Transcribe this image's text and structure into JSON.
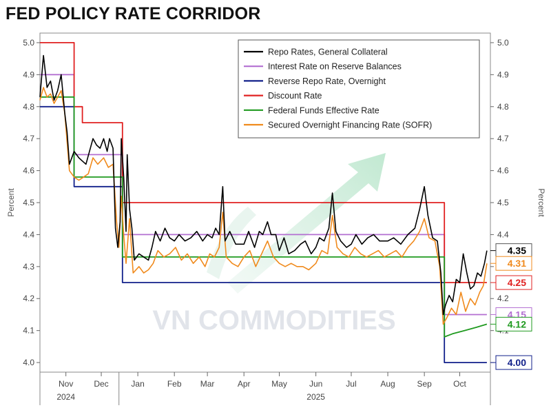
{
  "title": "FED POLICY RATE CORRIDOR",
  "watermark": "VN COMMODITIES",
  "chart_data": {
    "type": "line",
    "title": "FED POLICY RATE CORRIDOR",
    "ylabel_left": "Percent",
    "ylabel_right": "Percent",
    "ylim": [
      3.97,
      5.03
    ],
    "yticks": [
      "5.0",
      "4.9",
      "4.8",
      "4.7",
      "4.6",
      "4.5",
      "4.4",
      "4.3",
      "4.2",
      "4.1",
      "4.0"
    ],
    "ytick_values": [
      5.0,
      4.9,
      4.8,
      4.7,
      4.6,
      4.5,
      4.4,
      4.3,
      4.2,
      4.1,
      4.0
    ],
    "xlim": [
      "2024-10-10",
      "2025-10-27"
    ],
    "xticks": [
      {
        "date": "2024-11-01",
        "label": "Nov"
      },
      {
        "date": "2024-12-01",
        "label": "Dec"
      },
      {
        "date": "2025-01-01",
        "label": "Jan"
      },
      {
        "date": "2025-02-01",
        "label": "Feb"
      },
      {
        "date": "2025-03-01",
        "label": "Mar"
      },
      {
        "date": "2025-04-01",
        "label": "Apr"
      },
      {
        "date": "2025-05-01",
        "label": "May"
      },
      {
        "date": "2025-06-01",
        "label": "Jun"
      },
      {
        "date": "2025-07-01",
        "label": "Jul"
      },
      {
        "date": "2025-08-01",
        "label": "Aug"
      },
      {
        "date": "2025-09-01",
        "label": "Sep"
      },
      {
        "date": "2025-10-01",
        "label": "Oct"
      }
    ],
    "year_labels": [
      {
        "date": "2024-11-01",
        "label": "2024"
      },
      {
        "date": "2025-06-01",
        "label": "2025"
      }
    ],
    "year_divider": "2024-12-16",
    "legend_position": "top-right",
    "grid": false,
    "series": [
      {
        "name": "Repo Rates, General Collateral",
        "color": "#000000",
        "style": "noisy",
        "points": [
          [
            "2024-10-10",
            4.83
          ],
          [
            "2024-10-13",
            4.96
          ],
          [
            "2024-10-16",
            4.86
          ],
          [
            "2024-10-19",
            4.88
          ],
          [
            "2024-10-22",
            4.82
          ],
          [
            "2024-10-25",
            4.85
          ],
          [
            "2024-10-28",
            4.9
          ],
          [
            "2024-10-31",
            4.78
          ],
          [
            "2024-11-02",
            4.72
          ],
          [
            "2024-11-04",
            4.62
          ],
          [
            "2024-11-08",
            4.66
          ],
          [
            "2024-11-12",
            4.64
          ],
          [
            "2024-11-15",
            4.63
          ],
          [
            "2024-11-18",
            4.62
          ],
          [
            "2024-11-21",
            4.66
          ],
          [
            "2024-11-24",
            4.7
          ],
          [
            "2024-11-27",
            4.68
          ],
          [
            "2024-11-30",
            4.67
          ],
          [
            "2024-12-03",
            4.7
          ],
          [
            "2024-12-06",
            4.66
          ],
          [
            "2024-12-08",
            4.7
          ],
          [
            "2024-12-11",
            4.67
          ],
          [
            "2024-12-13",
            4.42
          ],
          [
            "2024-12-15",
            4.36
          ],
          [
            "2024-12-17",
            4.44
          ],
          [
            "2024-12-18",
            4.7
          ],
          [
            "2024-12-20",
            4.58
          ],
          [
            "2024-12-22",
            4.41
          ],
          [
            "2024-12-23",
            4.65
          ],
          [
            "2024-12-25",
            4.48
          ],
          [
            "2024-12-27",
            4.42
          ],
          [
            "2024-12-29",
            4.32
          ],
          [
            "2025-01-02",
            4.34
          ],
          [
            "2025-01-06",
            4.33
          ],
          [
            "2025-01-10",
            4.32
          ],
          [
            "2025-01-13",
            4.36
          ],
          [
            "2025-01-16",
            4.41
          ],
          [
            "2025-01-20",
            4.38
          ],
          [
            "2025-01-24",
            4.42
          ],
          [
            "2025-01-28",
            4.39
          ],
          [
            "2025-02-01",
            4.38
          ],
          [
            "2025-02-05",
            4.4
          ],
          [
            "2025-02-10",
            4.38
          ],
          [
            "2025-02-15",
            4.39
          ],
          [
            "2025-02-20",
            4.41
          ],
          [
            "2025-02-25",
            4.38
          ],
          [
            "2025-03-01",
            4.4
          ],
          [
            "2025-03-05",
            4.39
          ],
          [
            "2025-03-08",
            4.42
          ],
          [
            "2025-03-11",
            4.4
          ],
          [
            "2025-03-14",
            4.55
          ],
          [
            "2025-03-16",
            4.38
          ],
          [
            "2025-03-20",
            4.41
          ],
          [
            "2025-03-25",
            4.37
          ],
          [
            "2025-04-01",
            4.37
          ],
          [
            "2025-04-05",
            4.41
          ],
          [
            "2025-04-10",
            4.36
          ],
          [
            "2025-04-14",
            4.41
          ],
          [
            "2025-04-17",
            4.4
          ],
          [
            "2025-04-21",
            4.44
          ],
          [
            "2025-04-24",
            4.4
          ],
          [
            "2025-04-28",
            4.4
          ],
          [
            "2025-05-01",
            4.35
          ],
          [
            "2025-05-05",
            4.39
          ],
          [
            "2025-05-09",
            4.34
          ],
          [
            "2025-05-14",
            4.35
          ],
          [
            "2025-05-19",
            4.37
          ],
          [
            "2025-05-23",
            4.38
          ],
          [
            "2025-05-28",
            4.34
          ],
          [
            "2025-06-01",
            4.36
          ],
          [
            "2025-06-04",
            4.39
          ],
          [
            "2025-06-08",
            4.38
          ],
          [
            "2025-06-12",
            4.42
          ],
          [
            "2025-06-15",
            4.53
          ],
          [
            "2025-06-18",
            4.41
          ],
          [
            "2025-06-22",
            4.38
          ],
          [
            "2025-06-27",
            4.36
          ],
          [
            "2025-07-01",
            4.37
          ],
          [
            "2025-07-05",
            4.4
          ],
          [
            "2025-07-10",
            4.37
          ],
          [
            "2025-07-15",
            4.39
          ],
          [
            "2025-07-20",
            4.4
          ],
          [
            "2025-07-25",
            4.38
          ],
          [
            "2025-08-01",
            4.38
          ],
          [
            "2025-08-06",
            4.39
          ],
          [
            "2025-08-12",
            4.37
          ],
          [
            "2025-08-18",
            4.4
          ],
          [
            "2025-08-24",
            4.42
          ],
          [
            "2025-08-28",
            4.48
          ],
          [
            "2025-09-01",
            4.55
          ],
          [
            "2025-09-04",
            4.46
          ],
          [
            "2025-09-08",
            4.39
          ],
          [
            "2025-09-12",
            4.38
          ],
          [
            "2025-09-15",
            4.28
          ],
          [
            "2025-09-17",
            4.15
          ],
          [
            "2025-09-19",
            4.18
          ],
          [
            "2025-09-22",
            4.21
          ],
          [
            "2025-09-25",
            4.19
          ],
          [
            "2025-09-28",
            4.26
          ],
          [
            "2025-10-01",
            4.25
          ],
          [
            "2025-10-04",
            4.34
          ],
          [
            "2025-10-07",
            4.28
          ],
          [
            "2025-10-10",
            4.23
          ],
          [
            "2025-10-13",
            4.24
          ],
          [
            "2025-10-16",
            4.28
          ],
          [
            "2025-10-19",
            4.27
          ],
          [
            "2025-10-22",
            4.31
          ],
          [
            "2025-10-24",
            4.35
          ]
        ]
      },
      {
        "name": "Interest Rate on Reserve Balances",
        "color": "#b36fd1",
        "style": "step",
        "points": [
          [
            "2024-10-10",
            4.9
          ],
          [
            "2024-11-08",
            4.9
          ],
          [
            "2024-11-08",
            4.65
          ],
          [
            "2024-12-19",
            4.65
          ],
          [
            "2024-12-19",
            4.4
          ],
          [
            "2025-09-18",
            4.4
          ],
          [
            "2025-09-18",
            4.15
          ],
          [
            "2025-10-24",
            4.15
          ]
        ]
      },
      {
        "name": "Reverse Repo Rate, Overnight",
        "color": "#101f8a",
        "style": "step",
        "points": [
          [
            "2024-10-10",
            4.8
          ],
          [
            "2024-11-08",
            4.8
          ],
          [
            "2024-11-08",
            4.55
          ],
          [
            "2024-12-19",
            4.55
          ],
          [
            "2024-12-19",
            4.25
          ],
          [
            "2025-09-18",
            4.25
          ],
          [
            "2025-09-18",
            4.0
          ],
          [
            "2025-10-24",
            4.0
          ]
        ]
      },
      {
        "name": "Discount Rate",
        "color": "#e02020",
        "style": "step",
        "points": [
          [
            "2024-10-10",
            5.0
          ],
          [
            "2024-11-08",
            5.0
          ],
          [
            "2024-11-08",
            4.8
          ],
          [
            "2024-11-15",
            4.8
          ],
          [
            "2024-11-15",
            4.75
          ],
          [
            "2024-12-19",
            4.75
          ],
          [
            "2024-12-19",
            4.5
          ],
          [
            "2025-09-18",
            4.5
          ],
          [
            "2025-09-18",
            4.25
          ],
          [
            "2025-10-24",
            4.25
          ]
        ]
      },
      {
        "name": "Federal Funds Effective Rate",
        "color": "#1f9a1f",
        "style": "step",
        "points": [
          [
            "2024-10-10",
            4.83
          ],
          [
            "2024-11-08",
            4.83
          ],
          [
            "2024-11-08",
            4.58
          ],
          [
            "2024-12-19",
            4.58
          ],
          [
            "2024-12-19",
            4.33
          ],
          [
            "2025-09-18",
            4.33
          ],
          [
            "2025-09-18",
            4.08
          ],
          [
            "2025-09-25",
            4.09
          ],
          [
            "2025-10-05",
            4.1
          ],
          [
            "2025-10-15",
            4.11
          ],
          [
            "2025-10-24",
            4.12
          ]
        ]
      },
      {
        "name": "Secured Overnight Financing Rate (SOFR)",
        "color": "#f08a1c",
        "style": "noisy",
        "points": [
          [
            "2024-10-10",
            4.82
          ],
          [
            "2024-10-13",
            4.86
          ],
          [
            "2024-10-16",
            4.83
          ],
          [
            "2024-10-19",
            4.84
          ],
          [
            "2024-10-22",
            4.81
          ],
          [
            "2024-10-25",
            4.83
          ],
          [
            "2024-10-28",
            4.85
          ],
          [
            "2024-10-31",
            4.78
          ],
          [
            "2024-11-04",
            4.6
          ],
          [
            "2024-11-08",
            4.58
          ],
          [
            "2024-11-12",
            4.57
          ],
          [
            "2024-11-16",
            4.58
          ],
          [
            "2024-11-20",
            4.59
          ],
          [
            "2024-11-24",
            4.64
          ],
          [
            "2024-11-28",
            4.62
          ],
          [
            "2024-12-03",
            4.64
          ],
          [
            "2024-12-07",
            4.61
          ],
          [
            "2024-12-11",
            4.62
          ],
          [
            "2024-12-14",
            4.44
          ],
          [
            "2024-12-16",
            4.36
          ],
          [
            "2024-12-18",
            4.52
          ],
          [
            "2024-12-20",
            4.4
          ],
          [
            "2024-12-22",
            4.31
          ],
          [
            "2024-12-25",
            4.45
          ],
          [
            "2024-12-28",
            4.28
          ],
          [
            "2025-01-02",
            4.3
          ],
          [
            "2025-01-06",
            4.28
          ],
          [
            "2025-01-10",
            4.29
          ],
          [
            "2025-01-14",
            4.31
          ],
          [
            "2025-01-18",
            4.35
          ],
          [
            "2025-01-23",
            4.33
          ],
          [
            "2025-01-28",
            4.34
          ],
          [
            "2025-02-02",
            4.36
          ],
          [
            "2025-02-07",
            4.32
          ],
          [
            "2025-02-12",
            4.34
          ],
          [
            "2025-02-17",
            4.31
          ],
          [
            "2025-02-22",
            4.33
          ],
          [
            "2025-02-27",
            4.3
          ],
          [
            "2025-03-03",
            4.34
          ],
          [
            "2025-03-07",
            4.33
          ],
          [
            "2025-03-11",
            4.36
          ],
          [
            "2025-03-14",
            4.47
          ],
          [
            "2025-03-17",
            4.33
          ],
          [
            "2025-03-22",
            4.31
          ],
          [
            "2025-03-27",
            4.3
          ],
          [
            "2025-04-01",
            4.33
          ],
          [
            "2025-04-06",
            4.35
          ],
          [
            "2025-04-11",
            4.3
          ],
          [
            "2025-04-16",
            4.34
          ],
          [
            "2025-04-21",
            4.38
          ],
          [
            "2025-04-26",
            4.33
          ],
          [
            "2025-05-01",
            4.31
          ],
          [
            "2025-05-06",
            4.3
          ],
          [
            "2025-05-11",
            4.31
          ],
          [
            "2025-05-16",
            4.3
          ],
          [
            "2025-05-21",
            4.3
          ],
          [
            "2025-05-26",
            4.29
          ],
          [
            "2025-06-01",
            4.31
          ],
          [
            "2025-06-06",
            4.35
          ],
          [
            "2025-06-11",
            4.34
          ],
          [
            "2025-06-15",
            4.46
          ],
          [
            "2025-06-19",
            4.36
          ],
          [
            "2025-06-24",
            4.34
          ],
          [
            "2025-06-29",
            4.33
          ],
          [
            "2025-07-04",
            4.36
          ],
          [
            "2025-07-09",
            4.34
          ],
          [
            "2025-07-14",
            4.33
          ],
          [
            "2025-07-19",
            4.34
          ],
          [
            "2025-07-24",
            4.35
          ],
          [
            "2025-07-29",
            4.33
          ],
          [
            "2025-08-03",
            4.34
          ],
          [
            "2025-08-08",
            4.35
          ],
          [
            "2025-08-13",
            4.33
          ],
          [
            "2025-08-18",
            4.36
          ],
          [
            "2025-08-23",
            4.38
          ],
          [
            "2025-08-28",
            4.41
          ],
          [
            "2025-09-01",
            4.45
          ],
          [
            "2025-09-05",
            4.39
          ],
          [
            "2025-09-10",
            4.38
          ],
          [
            "2025-09-14",
            4.3
          ],
          [
            "2025-09-17",
            4.12
          ],
          [
            "2025-09-20",
            4.14
          ],
          [
            "2025-09-24",
            4.17
          ],
          [
            "2025-09-28",
            4.15
          ],
          [
            "2025-10-02",
            4.22
          ],
          [
            "2025-10-06",
            4.16
          ],
          [
            "2025-10-10",
            4.2
          ],
          [
            "2025-10-14",
            4.18
          ],
          [
            "2025-10-18",
            4.22
          ],
          [
            "2025-10-21",
            4.24
          ],
          [
            "2025-10-24",
            4.31
          ]
        ]
      }
    ],
    "end_labels": [
      {
        "value": 4.35,
        "text": "4.35",
        "color": "#000000",
        "boxed": true
      },
      {
        "value": 4.31,
        "text": "4.31",
        "color": "#f08a1c",
        "boxed": false
      },
      {
        "value": 4.25,
        "text": "4.25",
        "color": "#e02020",
        "boxed": false
      },
      {
        "value": 4.15,
        "text": "4.15",
        "color": "#b36fd1",
        "boxed": false
      },
      {
        "value": 4.12,
        "text": "4.12",
        "color": "#1f9a1f",
        "boxed": false
      },
      {
        "value": 4.0,
        "text": "4.00",
        "color": "#101f8a",
        "boxed": false
      }
    ]
  }
}
